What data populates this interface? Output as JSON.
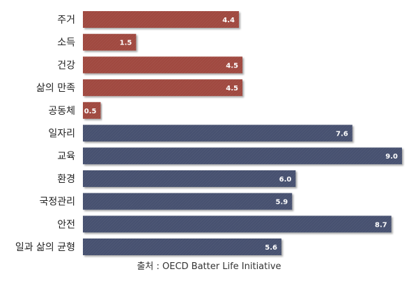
{
  "chart_data": {
    "type": "bar",
    "orientation": "horizontal",
    "categories": [
      "주거",
      "소득",
      "건강",
      "삶의 만족",
      "공동체",
      "일자리",
      "교육",
      "환경",
      "국정관리",
      "안전",
      "일과 삶의 균형"
    ],
    "values": [
      4.4,
      1.5,
      4.5,
      4.5,
      0.5,
      7.6,
      9.0,
      6.0,
      5.9,
      8.7,
      5.6
    ],
    "value_labels": [
      "4.4",
      "1.5",
      "4.5",
      "4.5",
      "0.5",
      "7.6",
      "9.0",
      "6.0",
      "5.9",
      "8.7",
      "5.6"
    ],
    "colors": [
      "#a0493f",
      "#a0493f",
      "#a0493f",
      "#a0493f",
      "#a0493f",
      "#46516f",
      "#46516f",
      "#46516f",
      "#46516f",
      "#46516f",
      "#46516f"
    ],
    "xlim": [
      0,
      9.0
    ],
    "grid": false,
    "legend": "none"
  },
  "source": "출처 : OECD Batter Life Initiative"
}
